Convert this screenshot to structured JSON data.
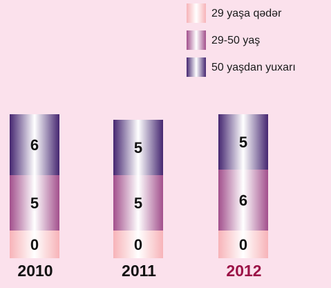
{
  "chart_data": {
    "type": "bar",
    "stacked": true,
    "categories": [
      "2010",
      "2011",
      "2012"
    ],
    "category_colors": [
      "#111111",
      "#111111",
      "#9b1346"
    ],
    "series": [
      {
        "name": "29 yaşa qədər",
        "color": "#f7b3b8",
        "values": [
          0,
          0,
          0
        ]
      },
      {
        "name": "29-50 yaş",
        "color": "#a24f8c",
        "values": [
          5,
          5,
          6
        ]
      },
      {
        "name": "50 yaşdan yuxarı",
        "color": "#452670",
        "values": [
          6,
          5,
          5
        ]
      }
    ],
    "legend": "top-right"
  }
}
